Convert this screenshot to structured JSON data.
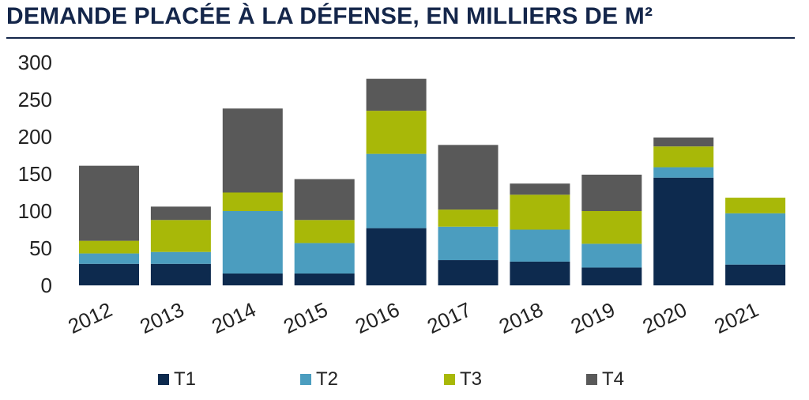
{
  "chart_data": {
    "type": "bar",
    "stacked": true,
    "title": "DEMANDE PLACÉE À LA DÉFENSE, EN MILLIERS DE M²",
    "xlabel": "",
    "ylabel": "",
    "ylim": [
      0,
      300
    ],
    "yticks": [
      0,
      50,
      100,
      150,
      200,
      250,
      300
    ],
    "categories": [
      "2012",
      "2013",
      "2014",
      "2015",
      "2016",
      "2017",
      "2018",
      "2019",
      "2020",
      "2021"
    ],
    "series": [
      {
        "name": "T1",
        "color": "#0d2a4e",
        "values": [
          29,
          29,
          16,
          16,
          77,
          34,
          32,
          24,
          145,
          28
        ]
      },
      {
        "name": "T2",
        "color": "#4b9dbf",
        "values": [
          14,
          16,
          84,
          41,
          100,
          45,
          43,
          32,
          14,
          69
        ]
      },
      {
        "name": "T3",
        "color": "#a8b808",
        "values": [
          17,
          43,
          25,
          31,
          58,
          23,
          47,
          44,
          28,
          21
        ]
      },
      {
        "name": "T4",
        "color": "#595959",
        "values": [
          101,
          18,
          113,
          55,
          43,
          87,
          15,
          49,
          12,
          0
        ]
      }
    ],
    "legend_position": "bottom",
    "grid": false
  }
}
